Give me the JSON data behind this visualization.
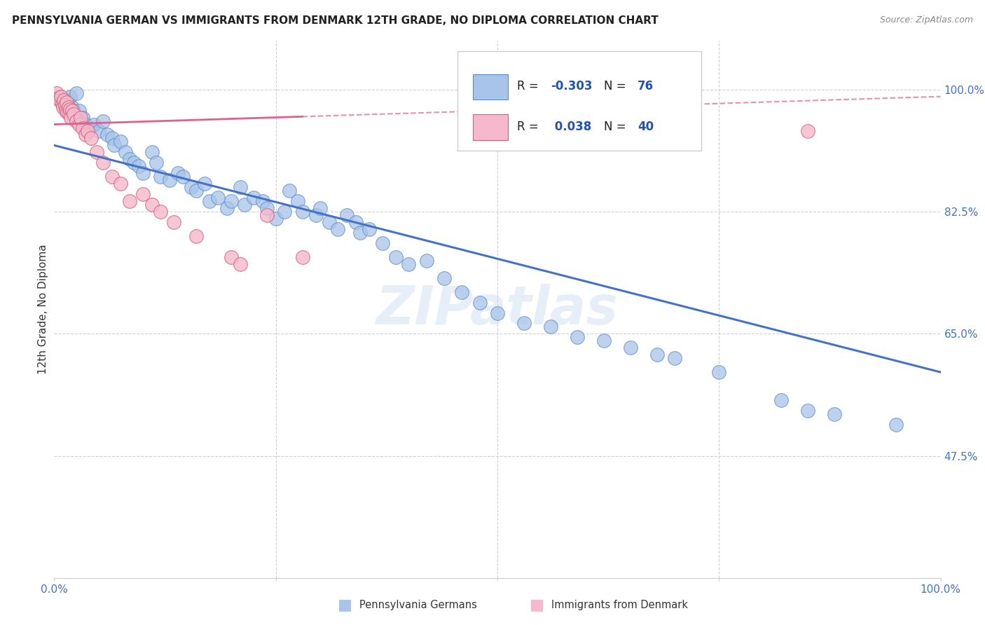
{
  "title": "PENNSYLVANIA GERMAN VS IMMIGRANTS FROM DENMARK 12TH GRADE, NO DIPLOMA CORRELATION CHART",
  "source": "Source: ZipAtlas.com",
  "ylabel": "12th Grade, No Diploma",
  "y_tick_labels_right": [
    "100.0%",
    "82.5%",
    "65.0%",
    "47.5%"
  ],
  "y_tick_values_right": [
    1.0,
    0.825,
    0.65,
    0.475
  ],
  "xlim": [
    0.0,
    1.0
  ],
  "ylim": [
    0.3,
    1.07
  ],
  "blue_scatter_x": [
    0.005,
    0.008,
    0.01,
    0.012,
    0.015,
    0.018,
    0.02,
    0.022,
    0.025,
    0.028,
    0.032,
    0.035,
    0.04,
    0.045,
    0.05,
    0.055,
    0.06,
    0.065,
    0.068,
    0.075,
    0.08,
    0.085,
    0.09,
    0.095,
    0.1,
    0.11,
    0.115,
    0.12,
    0.13,
    0.14,
    0.145,
    0.155,
    0.16,
    0.17,
    0.175,
    0.185,
    0.195,
    0.2,
    0.21,
    0.215,
    0.225,
    0.235,
    0.24,
    0.25,
    0.26,
    0.265,
    0.275,
    0.28,
    0.295,
    0.3,
    0.31,
    0.32,
    0.33,
    0.34,
    0.345,
    0.355,
    0.37,
    0.385,
    0.4,
    0.42,
    0.44,
    0.46,
    0.48,
    0.5,
    0.53,
    0.56,
    0.59,
    0.62,
    0.65,
    0.68,
    0.7,
    0.75,
    0.82,
    0.85,
    0.88,
    0.95
  ],
  "blue_scatter_y": [
    0.99,
    0.985,
    0.98,
    0.975,
    0.985,
    0.99,
    0.975,
    0.97,
    0.995,
    0.97,
    0.96,
    0.95,
    0.945,
    0.95,
    0.94,
    0.955,
    0.935,
    0.93,
    0.92,
    0.925,
    0.91,
    0.9,
    0.895,
    0.89,
    0.88,
    0.91,
    0.895,
    0.875,
    0.87,
    0.88,
    0.875,
    0.86,
    0.855,
    0.865,
    0.84,
    0.845,
    0.83,
    0.84,
    0.86,
    0.835,
    0.845,
    0.84,
    0.83,
    0.815,
    0.825,
    0.855,
    0.84,
    0.825,
    0.82,
    0.83,
    0.81,
    0.8,
    0.82,
    0.81,
    0.795,
    0.8,
    0.78,
    0.76,
    0.75,
    0.755,
    0.73,
    0.71,
    0.695,
    0.68,
    0.665,
    0.66,
    0.645,
    0.64,
    0.63,
    0.62,
    0.615,
    0.595,
    0.555,
    0.54,
    0.535,
    0.52
  ],
  "pink_scatter_x": [
    0.003,
    0.005,
    0.006,
    0.008,
    0.009,
    0.01,
    0.011,
    0.012,
    0.013,
    0.014,
    0.015,
    0.016,
    0.017,
    0.018,
    0.019,
    0.02,
    0.022,
    0.025,
    0.028,
    0.03,
    0.032,
    0.035,
    0.038,
    0.042,
    0.048,
    0.055,
    0.065,
    0.075,
    0.085,
    0.1,
    0.11,
    0.12,
    0.135,
    0.16,
    0.2,
    0.21,
    0.24,
    0.28,
    0.63,
    0.85
  ],
  "pink_scatter_y": [
    0.995,
    0.988,
    0.985,
    0.99,
    0.98,
    0.975,
    0.985,
    0.978,
    0.97,
    0.982,
    0.968,
    0.975,
    0.965,
    0.972,
    0.96,
    0.97,
    0.965,
    0.955,
    0.95,
    0.96,
    0.945,
    0.935,
    0.94,
    0.93,
    0.91,
    0.895,
    0.875,
    0.865,
    0.84,
    0.85,
    0.835,
    0.825,
    0.81,
    0.79,
    0.76,
    0.75,
    0.82,
    0.76,
    1.0,
    0.94
  ],
  "blue_line_x0": 0.0,
  "blue_line_x1": 1.0,
  "blue_line_y0": 0.92,
  "blue_line_y1": 0.595,
  "pink_line_x0": 0.0,
  "pink_line_x1": 1.0,
  "pink_line_y0": 0.95,
  "pink_line_y1": 0.99,
  "blue_color": "#4472c4",
  "pink_color": "#e06090",
  "blue_scatter_color": "#a8c4e8",
  "pink_scatter_color": "#f5b8cc",
  "blue_scatter_edge": "#5b8cc8",
  "pink_scatter_edge": "#d0607a",
  "watermark": "ZIPatlas",
  "background_color": "#ffffff",
  "grid_color": "#d0d0d0",
  "legend_R_blue": "-0.303",
  "legend_N_blue": "76",
  "legend_R_pink": "0.038",
  "legend_N_pink": "40",
  "title_fontsize": 11,
  "source_fontsize": 9,
  "tick_fontsize": 11,
  "ylabel_fontsize": 11
}
